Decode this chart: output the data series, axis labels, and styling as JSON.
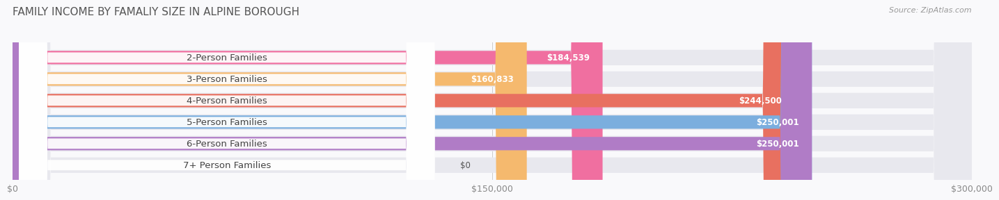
{
  "title": "FAMILY INCOME BY FAMALIY SIZE IN ALPINE BOROUGH",
  "source": "Source: ZipAtlas.com",
  "categories": [
    "2-Person Families",
    "3-Person Families",
    "4-Person Families",
    "5-Person Families",
    "6-Person Families",
    "7+ Person Families"
  ],
  "values": [
    184539,
    160833,
    244500,
    250001,
    250001,
    0
  ],
  "bar_colors": [
    "#f06fa0",
    "#f5b96e",
    "#e87060",
    "#7baede",
    "#b07cc6",
    "#7dcfcf"
  ],
  "track_color": "#e8e8ee",
  "label_bg_color": "#ffffff",
  "value_labels": [
    "$184,539",
    "$160,833",
    "$244,500",
    "$250,001",
    "$250,001",
    "$0"
  ],
  "xlim": [
    0,
    300000
  ],
  "xtick_values": [
    0,
    150000,
    300000
  ],
  "xtick_labels": [
    "$0",
    "$150,000",
    "$300,000"
  ],
  "bg_color": "#f9f9fb",
  "title_color": "#555555",
  "label_fontsize": 9.5,
  "value_fontsize": 8.5,
  "title_fontsize": 11
}
